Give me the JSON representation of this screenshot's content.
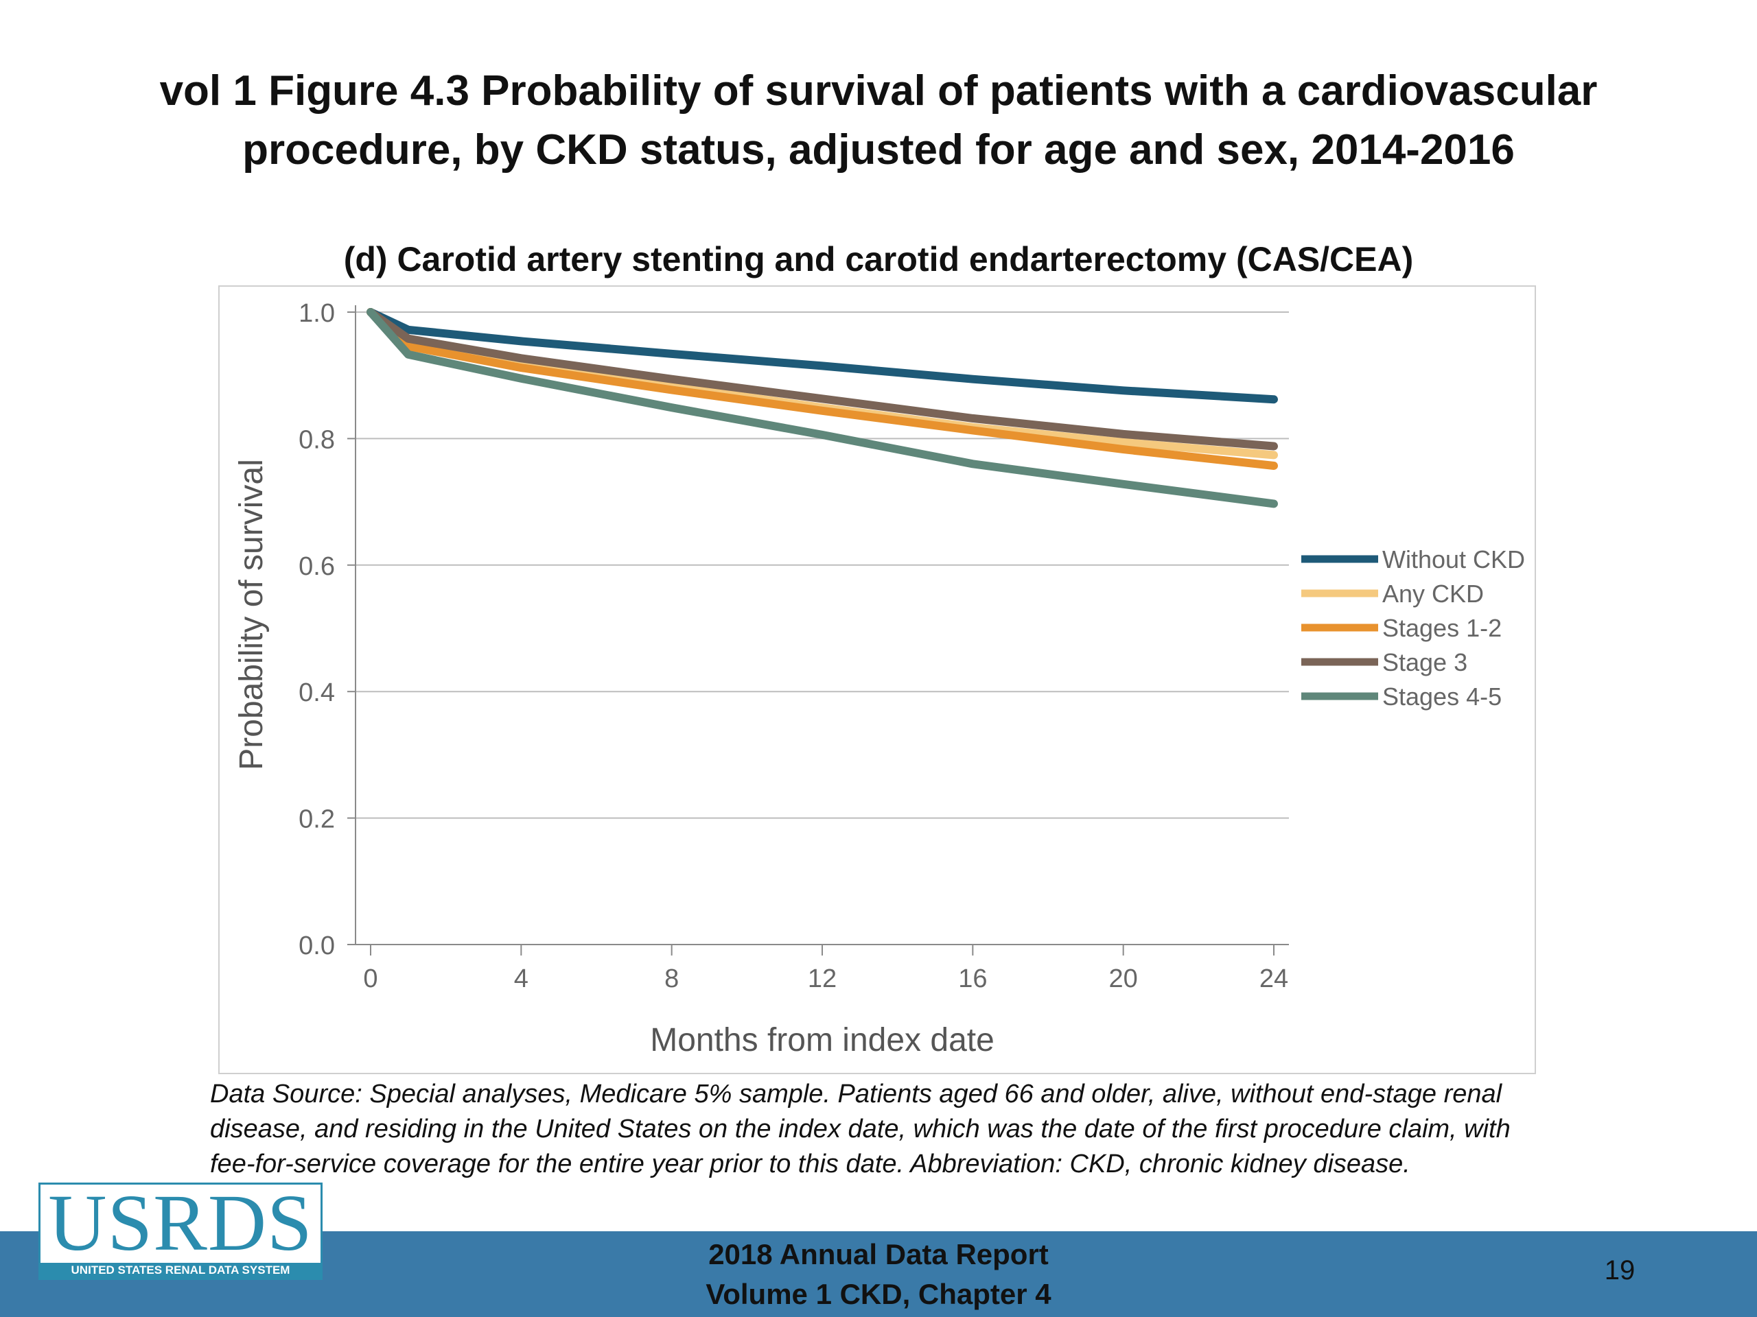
{
  "slide": {
    "title_line1": "vol 1 Figure 4.3 Probability of survival of patients with a cardiovascular",
    "title_line2": "procedure, by CKD status, adjusted for age and sex, 2014-2016",
    "source_line1": "Data Source: Special analyses, Medicare 5% sample. Patients aged 66 and older, alive, without end-stage renal",
    "source_line2": "disease, and residing in the United States on the index date, which was the date of the first procedure claim, with",
    "source_line3": "fee-for-service coverage for the entire year prior to this date. Abbreviation: CKD, chronic kidney disease.",
    "footer_line1": "2018 Annual Data Report",
    "footer_line2": "Volume 1 CKD, Chapter 4",
    "page_number": "19",
    "logo_text": "USRDS",
    "logo_tagline": "UNITED STATES RENAL DATA SYSTEM"
  },
  "chart_data": {
    "type": "line",
    "title": "(d) Carotid artery stenting and carotid endarterectomy (CAS/CEA)",
    "xlabel": "Months from index date",
    "ylabel": "Probability of survival",
    "xlim": [
      0,
      24
    ],
    "ylim": [
      0,
      1
    ],
    "xticks": [
      "0",
      "4",
      "8",
      "12",
      "16",
      "20",
      "24"
    ],
    "yticks": [
      "0.0",
      "0.2",
      "0.4",
      "0.6",
      "0.8",
      "1.0"
    ],
    "xtick_values": [
      0,
      4,
      8,
      12,
      16,
      20,
      24
    ],
    "ytick_values": [
      0,
      0.2,
      0.4,
      0.6,
      0.8,
      1.0
    ],
    "grid": "horizontal",
    "legend_position": "right",
    "x": [
      0,
      1,
      4,
      8,
      12,
      16,
      20,
      24
    ],
    "series": [
      {
        "name": "Without CKD",
        "color": "#1e5a78",
        "values": [
          1.0,
          0.972,
          0.954,
          0.934,
          0.915,
          0.894,
          0.876,
          0.862
        ]
      },
      {
        "name": "Any CKD",
        "color": "#f5c97e",
        "values": [
          1.0,
          0.952,
          0.917,
          0.882,
          0.849,
          0.818,
          0.794,
          0.774
        ]
      },
      {
        "name": "Stages 1-2",
        "color": "#e8922e",
        "values": [
          1.0,
          0.946,
          0.912,
          0.877,
          0.844,
          0.813,
          0.783,
          0.757
        ]
      },
      {
        "name": "Stage 3",
        "color": "#7a6457",
        "values": [
          1.0,
          0.958,
          0.927,
          0.894,
          0.863,
          0.832,
          0.807,
          0.788
        ]
      },
      {
        "name": "Stages 4-5",
        "color": "#5f877a",
        "values": [
          1.0,
          0.933,
          0.895,
          0.849,
          0.806,
          0.76,
          0.728,
          0.697
        ]
      }
    ]
  }
}
